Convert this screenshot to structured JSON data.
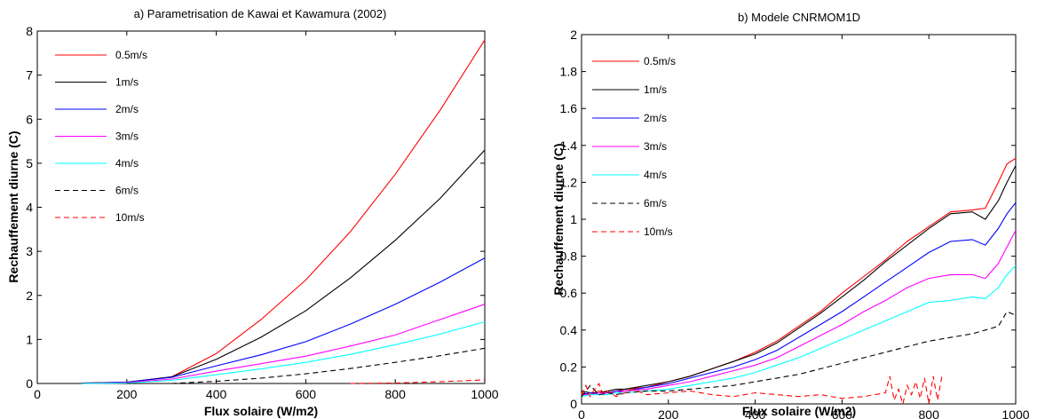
{
  "chart_data": [
    {
      "type": "line",
      "title": "a) Parametrisation de Kawai et Kawamura (2002)",
      "xlabel": "Flux solaire (W/m2)",
      "ylabel": "Rechauffement diurne (C)",
      "xlim": [
        0,
        1000
      ],
      "ylim": [
        0,
        8
      ],
      "xticks": [
        "0",
        "200",
        "400",
        "600",
        "800",
        "1000"
      ],
      "yticks": [
        "0",
        "1",
        "2",
        "3",
        "4",
        "5",
        "6",
        "7",
        "8"
      ],
      "grid": false,
      "legend_position": "top-left",
      "series": [
        {
          "name": "0.5m/s",
          "color": "#ff0000",
          "dash": "solid",
          "x": [
            100,
            200,
            300,
            400,
            500,
            600,
            700,
            800,
            900,
            1000
          ],
          "y": [
            0.01,
            0.03,
            0.15,
            0.68,
            1.45,
            2.35,
            3.45,
            4.75,
            6.2,
            7.8
          ]
        },
        {
          "name": "1m/s",
          "color": "#000000",
          "dash": "solid",
          "x": [
            100,
            200,
            300,
            400,
            500,
            600,
            700,
            800,
            900,
            1000
          ],
          "y": [
            0.01,
            0.03,
            0.15,
            0.55,
            1.05,
            1.65,
            2.4,
            3.25,
            4.2,
            5.3
          ]
        },
        {
          "name": "2m/s",
          "color": "#0000ff",
          "dash": "solid",
          "x": [
            100,
            200,
            300,
            400,
            500,
            600,
            700,
            800,
            900,
            1000
          ],
          "y": [
            0.0,
            0.03,
            0.14,
            0.4,
            0.65,
            0.95,
            1.35,
            1.8,
            2.3,
            2.85
          ]
        },
        {
          "name": "3m/s",
          "color": "#ff00ff",
          "dash": "solid",
          "x": [
            100,
            200,
            300,
            400,
            500,
            600,
            700,
            800,
            900,
            1000
          ],
          "y": [
            0.0,
            0.02,
            0.1,
            0.28,
            0.45,
            0.62,
            0.85,
            1.1,
            1.45,
            1.8
          ]
        },
        {
          "name": "4m/s",
          "color": "#00ffff",
          "dash": "solid",
          "x": [
            100,
            200,
            300,
            400,
            500,
            600,
            700,
            800,
            900,
            1000
          ],
          "y": [
            0.0,
            0.01,
            0.07,
            0.2,
            0.33,
            0.48,
            0.66,
            0.88,
            1.12,
            1.4
          ]
        },
        {
          "name": "6m/s",
          "color": "#000000",
          "dash": "dashed",
          "x": [
            200,
            300,
            400,
            500,
            600,
            700,
            800,
            900,
            1000
          ],
          "y": [
            0.0,
            0.0,
            0.05,
            0.12,
            0.22,
            0.34,
            0.48,
            0.63,
            0.8
          ]
        },
        {
          "name": "10m/s",
          "color": "#ff0000",
          "dash": "dashed",
          "x": [
            700,
            800,
            900,
            1000
          ],
          "y": [
            0.0,
            0.01,
            0.04,
            0.08
          ]
        }
      ]
    },
    {
      "type": "line",
      "title": "b) Modele CNRMOM1D",
      "xlabel": "Flux solaire (W/m2)",
      "ylabel": "Rechauffement diurne (C)",
      "xlim": [
        0,
        1000
      ],
      "ylim": [
        0,
        2
      ],
      "xticks": [
        "0",
        "200",
        "400",
        "600",
        "800",
        "1000"
      ],
      "yticks": [
        "0",
        "0.2",
        "0.4",
        "0.6",
        "0.8",
        "1",
        "1.2",
        "1.4",
        "1.6",
        "1.8",
        "2"
      ],
      "grid": false,
      "legend_position": "top-left",
      "series": [
        {
          "name": "0.5m/s",
          "color": "#ff0000",
          "dash": "solid",
          "x": [
            0,
            20,
            40,
            60,
            80,
            100,
            150,
            200,
            250,
            300,
            350,
            400,
            450,
            500,
            550,
            600,
            650,
            700,
            750,
            800,
            850,
            900,
            930,
            960,
            980,
            1000
          ],
          "y": [
            0.06,
            0.05,
            0.07,
            0.06,
            0.07,
            0.08,
            0.09,
            0.12,
            0.15,
            0.19,
            0.23,
            0.28,
            0.34,
            0.42,
            0.5,
            0.6,
            0.69,
            0.78,
            0.88,
            0.96,
            1.04,
            1.05,
            1.06,
            1.2,
            1.3,
            1.33
          ]
        },
        {
          "name": "1m/s",
          "color": "#000000",
          "dash": "solid",
          "x": [
            0,
            20,
            40,
            60,
            80,
            100,
            150,
            200,
            250,
            300,
            350,
            400,
            450,
            500,
            550,
            600,
            650,
            700,
            750,
            800,
            850,
            900,
            930,
            960,
            980,
            1000
          ],
          "y": [
            0.07,
            0.06,
            0.06,
            0.07,
            0.08,
            0.08,
            0.1,
            0.12,
            0.15,
            0.19,
            0.23,
            0.27,
            0.33,
            0.41,
            0.49,
            0.58,
            0.67,
            0.77,
            0.86,
            0.95,
            1.03,
            1.04,
            1.0,
            1.1,
            1.2,
            1.29
          ]
        },
        {
          "name": "2m/s",
          "color": "#0000ff",
          "dash": "solid",
          "x": [
            0,
            20,
            40,
            60,
            80,
            100,
            150,
            200,
            250,
            300,
            350,
            400,
            450,
            500,
            550,
            600,
            650,
            700,
            750,
            800,
            850,
            900,
            930,
            960,
            980,
            1000
          ],
          "y": [
            0.05,
            0.06,
            0.05,
            0.06,
            0.07,
            0.07,
            0.09,
            0.11,
            0.14,
            0.17,
            0.2,
            0.24,
            0.29,
            0.36,
            0.43,
            0.5,
            0.58,
            0.66,
            0.74,
            0.82,
            0.88,
            0.89,
            0.86,
            0.95,
            1.03,
            1.09
          ]
        },
        {
          "name": "3m/s",
          "color": "#ff00ff",
          "dash": "solid",
          "x": [
            0,
            20,
            40,
            60,
            80,
            100,
            150,
            200,
            250,
            300,
            350,
            400,
            450,
            500,
            550,
            600,
            650,
            700,
            750,
            800,
            850,
            900,
            930,
            960,
            980,
            1000
          ],
          "y": [
            0.05,
            0.05,
            0.06,
            0.06,
            0.06,
            0.07,
            0.08,
            0.1,
            0.12,
            0.15,
            0.18,
            0.21,
            0.25,
            0.31,
            0.37,
            0.43,
            0.5,
            0.56,
            0.63,
            0.68,
            0.7,
            0.7,
            0.68,
            0.76,
            0.85,
            0.94
          ]
        },
        {
          "name": "4m/s",
          "color": "#00ffff",
          "dash": "solid",
          "x": [
            0,
            20,
            40,
            60,
            80,
            100,
            150,
            200,
            250,
            300,
            350,
            400,
            450,
            500,
            550,
            600,
            650,
            700,
            750,
            800,
            850,
            900,
            930,
            960,
            980,
            1000
          ],
          "y": [
            0.04,
            0.05,
            0.05,
            0.05,
            0.06,
            0.06,
            0.07,
            0.08,
            0.1,
            0.12,
            0.14,
            0.17,
            0.21,
            0.25,
            0.3,
            0.35,
            0.4,
            0.45,
            0.5,
            0.55,
            0.56,
            0.58,
            0.57,
            0.63,
            0.7,
            0.75
          ]
        },
        {
          "name": "6m/s",
          "color": "#000000",
          "dash": "dashed",
          "x": [
            0,
            20,
            40,
            60,
            80,
            100,
            150,
            200,
            250,
            300,
            350,
            400,
            450,
            500,
            550,
            600,
            650,
            700,
            750,
            800,
            850,
            900,
            930,
            960,
            980,
            1000
          ],
          "y": [
            0.04,
            0.1,
            0.05,
            0.06,
            0.05,
            0.06,
            0.07,
            0.07,
            0.08,
            0.09,
            0.1,
            0.12,
            0.14,
            0.16,
            0.19,
            0.22,
            0.25,
            0.28,
            0.31,
            0.34,
            0.36,
            0.38,
            0.4,
            0.42,
            0.5,
            0.48
          ]
        },
        {
          "name": "10m/s",
          "color": "#ff0000",
          "dash": "dashed",
          "x": [
            0,
            10,
            20,
            30,
            40,
            50,
            60,
            80,
            100,
            120,
            150,
            200,
            250,
            300,
            350,
            400,
            450,
            500,
            550,
            600,
            650,
            700,
            710,
            720,
            730,
            740,
            750,
            760,
            770,
            780,
            790,
            800,
            810,
            820,
            830
          ],
          "y": [
            0.05,
            0.1,
            0.04,
            0.08,
            0.11,
            0.05,
            0.07,
            0.04,
            0.06,
            0.08,
            0.05,
            0.06,
            0.07,
            0.05,
            0.04,
            0.06,
            0.05,
            0.04,
            0.05,
            0.03,
            0.04,
            0.06,
            0.15,
            0.02,
            0.08,
            0.0,
            0.1,
            0.05,
            0.12,
            0.03,
            0.14,
            0.0,
            0.15,
            0.02,
            0.15
          ]
        }
      ]
    }
  ]
}
